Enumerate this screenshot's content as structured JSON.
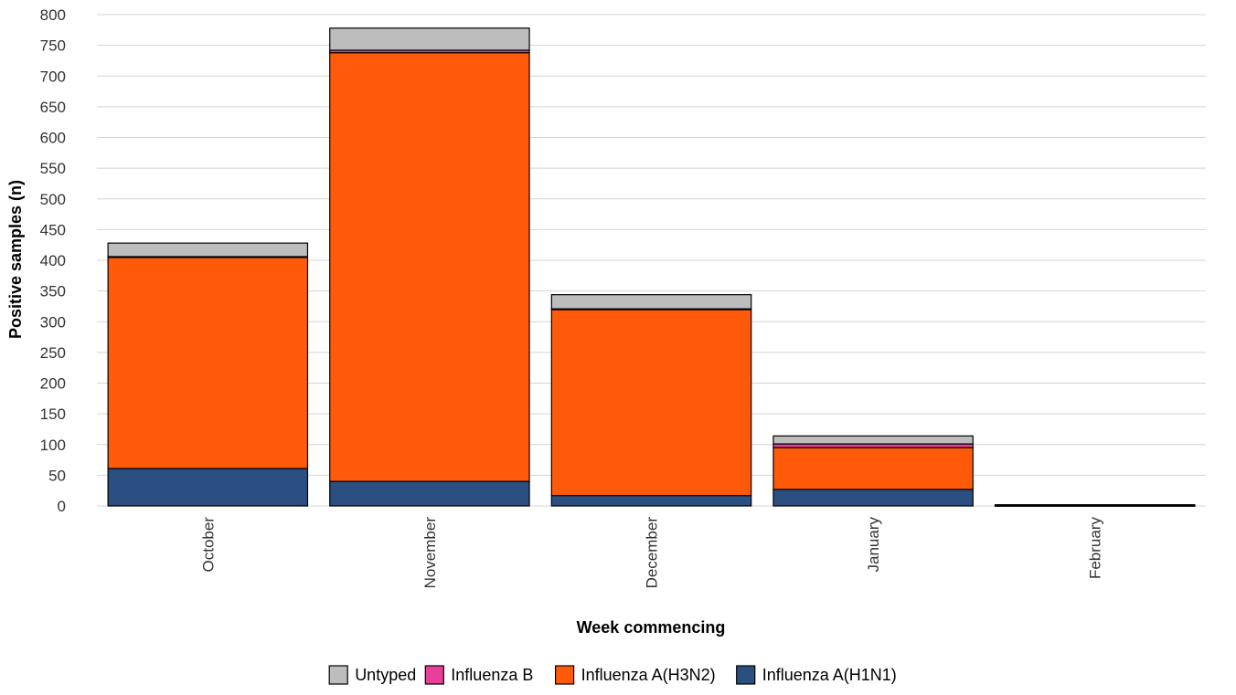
{
  "chart_data": {
    "type": "bar",
    "stacked": true,
    "title": "",
    "xlabel": "Week commencing",
    "ylabel": "Positive samples (n)",
    "ylim": [
      0,
      800
    ],
    "yticks": [
      0,
      50,
      100,
      150,
      200,
      250,
      300,
      350,
      400,
      450,
      500,
      550,
      600,
      650,
      700,
      750,
      800
    ],
    "grid": true,
    "legend_position": "bottom",
    "categories": [
      "October",
      "November",
      "December",
      "January",
      "February"
    ],
    "series": [
      {
        "name": "Influenza A(H1N1)",
        "color": "#2b4f81",
        "values": [
          61,
          40,
          17,
          27,
          1
        ]
      },
      {
        "name": "Influenza A(H3N2)",
        "color": "#ff5a0a",
        "values": [
          344,
          698,
          303,
          68,
          1
        ]
      },
      {
        "name": "Influenza B",
        "color": "#e8409a",
        "values": [
          1,
          4,
          1,
          6,
          0
        ]
      },
      {
        "name": "Untyped",
        "color": "#bdbdbd",
        "values": [
          22,
          36,
          23,
          13,
          0
        ]
      }
    ],
    "legend_order": [
      "Untyped",
      "Influenza B",
      "Influenza A(H3N2)",
      "Influenza A(H1N1)"
    ]
  }
}
